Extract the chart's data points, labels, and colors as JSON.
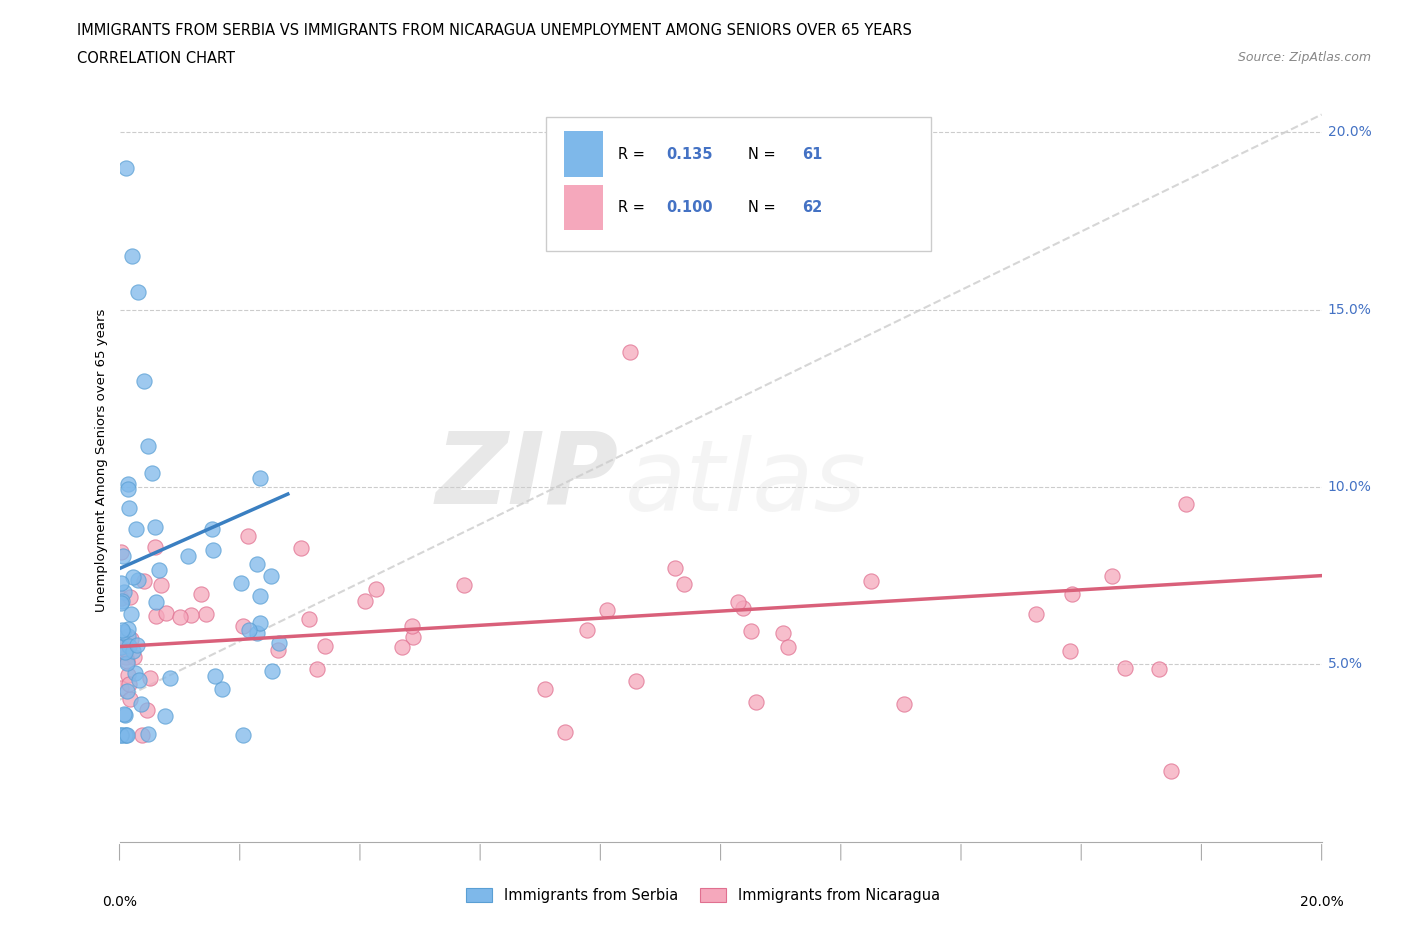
{
  "title_line1": "IMMIGRANTS FROM SERBIA VS IMMIGRANTS FROM NICARAGUA UNEMPLOYMENT AMONG SENIORS OVER 65 YEARS",
  "title_line2": "CORRELATION CHART",
  "source": "Source: ZipAtlas.com",
  "ylabel": "Unemployment Among Seniors over 65 years",
  "ytick_labels": [
    "5.0%",
    "10.0%",
    "15.0%",
    "20.0%"
  ],
  "ytick_values": [
    0.05,
    0.1,
    0.15,
    0.2
  ],
  "xlim": [
    0.0,
    0.2
  ],
  "ylim": [
    0.0,
    0.215
  ],
  "serbia_color": "#7EB8EA",
  "serbia_edge_color": "#5A9FD4",
  "nicaragua_color": "#F5A8BC",
  "nicaragua_edge_color": "#E07090",
  "serbia_R": "0.135",
  "serbia_N": "61",
  "nicaragua_R": "0.100",
  "nicaragua_N": "62",
  "legend_text_color": "#4472C4",
  "serbia_trendline_x": [
    0.0,
    0.028
  ],
  "serbia_trendline_y": [
    0.077,
    0.098
  ],
  "nicaragua_trendline_x": [
    0.0,
    0.2
  ],
  "nicaragua_trendline_y": [
    0.055,
    0.075
  ],
  "diag_line_x": [
    0.0,
    0.2
  ],
  "diag_line_y": [
    0.04,
    0.205
  ],
  "watermark_zip": "ZIP",
  "watermark_atlas": "atlas"
}
